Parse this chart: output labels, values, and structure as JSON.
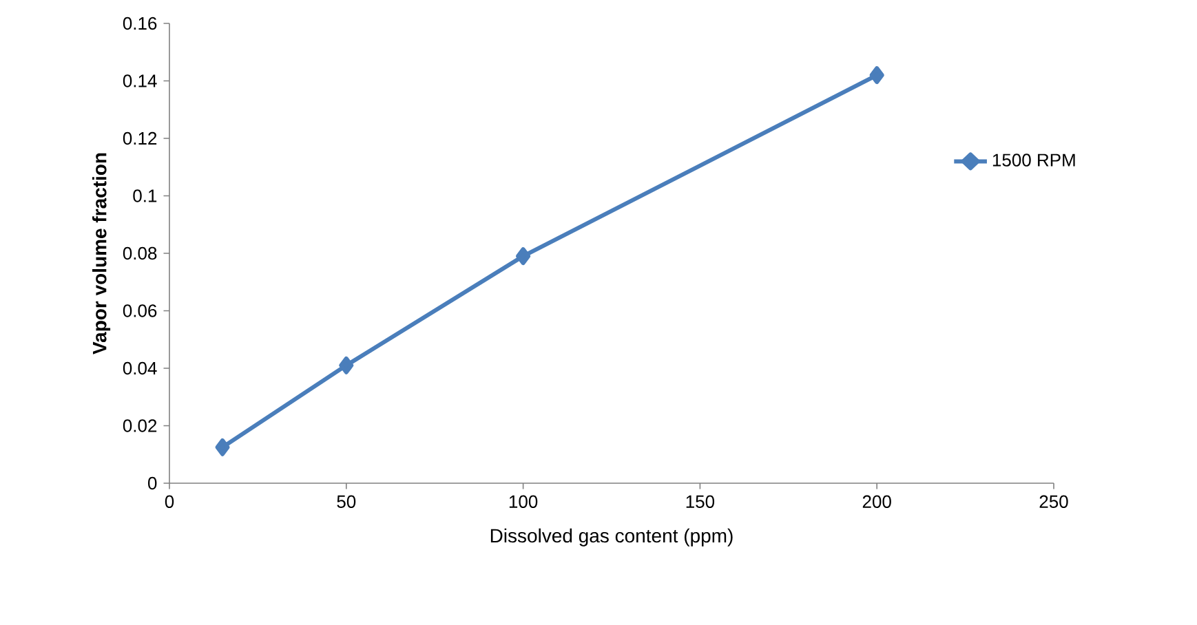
{
  "chart_data": {
    "type": "line",
    "xlabel": "Dissolved gas content (ppm)",
    "ylabel": "Vapor volume fraction",
    "x": [
      15,
      50,
      100,
      200
    ],
    "series": [
      {
        "name": "1500 RPM",
        "color": "#4a7ebb",
        "values": [
          0.0125,
          0.041,
          0.079,
          0.142
        ]
      }
    ],
    "xlim": [
      0,
      250
    ],
    "ylim": [
      0,
      0.16
    ],
    "xticks": [
      0,
      50,
      100,
      150,
      200,
      250
    ],
    "yticks": [
      0,
      0.02,
      0.04,
      0.06,
      0.08,
      0.1,
      0.12,
      0.14,
      0.16
    ],
    "legend": "right",
    "marker": "diamond",
    "line_style": "solid"
  }
}
